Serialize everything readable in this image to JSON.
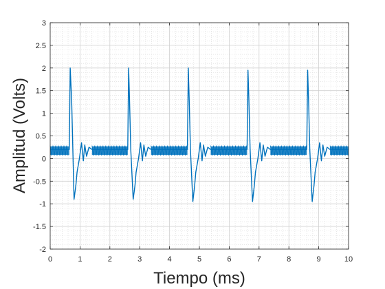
{
  "chart_data": {
    "type": "line",
    "title": "",
    "xlabel": "Tiempo (ms)",
    "ylabel": "Amplitud (Volts)",
    "xlim": [
      0,
      10
    ],
    "ylim": [
      -2,
      3
    ],
    "xticks": [
      0,
      1,
      2,
      3,
      4,
      5,
      6,
      7,
      8,
      9,
      10
    ],
    "yticks": [
      -2,
      -1.5,
      -1,
      -0.5,
      0,
      0.5,
      1,
      1.5,
      2,
      2.5,
      3
    ],
    "xtick_labels": [
      "0",
      "1",
      "2",
      "3",
      "4",
      "5",
      "6",
      "7",
      "8",
      "9",
      "10"
    ],
    "ytick_labels": [
      "-2",
      "-1.5",
      "-1",
      "-0.5",
      "0",
      "0.5",
      "1",
      "1.5",
      "2",
      "2.5",
      "3"
    ],
    "grid": true,
    "minor_grid": true,
    "line_color": "#0072bd",
    "series": [
      {
        "x": [
          0,
          0.64,
          0.67,
          0.72,
          0.8,
          0.86,
          0.9,
          0.98,
          1.05,
          1.11,
          1.16,
          1.22,
          1.3,
          1.4,
          2.6,
          2.63,
          2.66,
          2.7,
          2.78,
          2.84,
          2.88,
          2.96,
          3.03,
          3.09,
          3.14,
          3.2,
          3.28,
          3.38,
          4.6,
          4.63,
          4.66,
          4.7,
          4.78,
          4.84,
          4.88,
          4.96,
          5.03,
          5.09,
          5.14,
          5.2,
          5.28,
          5.38,
          6.6,
          6.63,
          6.66,
          6.7,
          6.78,
          6.84,
          6.88,
          6.96,
          7.03,
          7.09,
          7.14,
          7.2,
          7.28,
          7.38,
          8.6,
          8.63,
          8.66,
          8.7,
          8.78,
          8.84,
          8.88,
          8.96,
          9.03,
          9.09,
          9.14,
          9.2,
          9.28,
          9.38,
          10
        ],
        "y": [
          0.2,
          0.2,
          2.0,
          1.3,
          -0.9,
          -0.6,
          -0.3,
          0.0,
          0.35,
          -0.05,
          0.3,
          0.05,
          0.25,
          0.2,
          0.2,
          2.0,
          1.3,
          0.2,
          -0.9,
          -0.6,
          -0.3,
          0.0,
          0.35,
          -0.05,
          0.3,
          0.05,
          0.25,
          0.2,
          0.2,
          2.0,
          1.3,
          0.2,
          -0.95,
          -0.6,
          -0.3,
          0.0,
          0.35,
          -0.05,
          0.3,
          0.05,
          0.25,
          0.2,
          0.2,
          1.95,
          1.3,
          0.2,
          -0.95,
          -0.6,
          -0.3,
          0.0,
          0.35,
          -0.05,
          0.3,
          0.05,
          0.25,
          0.2,
          0.2,
          1.95,
          1.3,
          0.2,
          -0.95,
          -0.6,
          -0.3,
          0.0,
          0.35,
          -0.05,
          0.3,
          0.05,
          0.25,
          0.2,
          0.2
        ]
      }
    ]
  }
}
